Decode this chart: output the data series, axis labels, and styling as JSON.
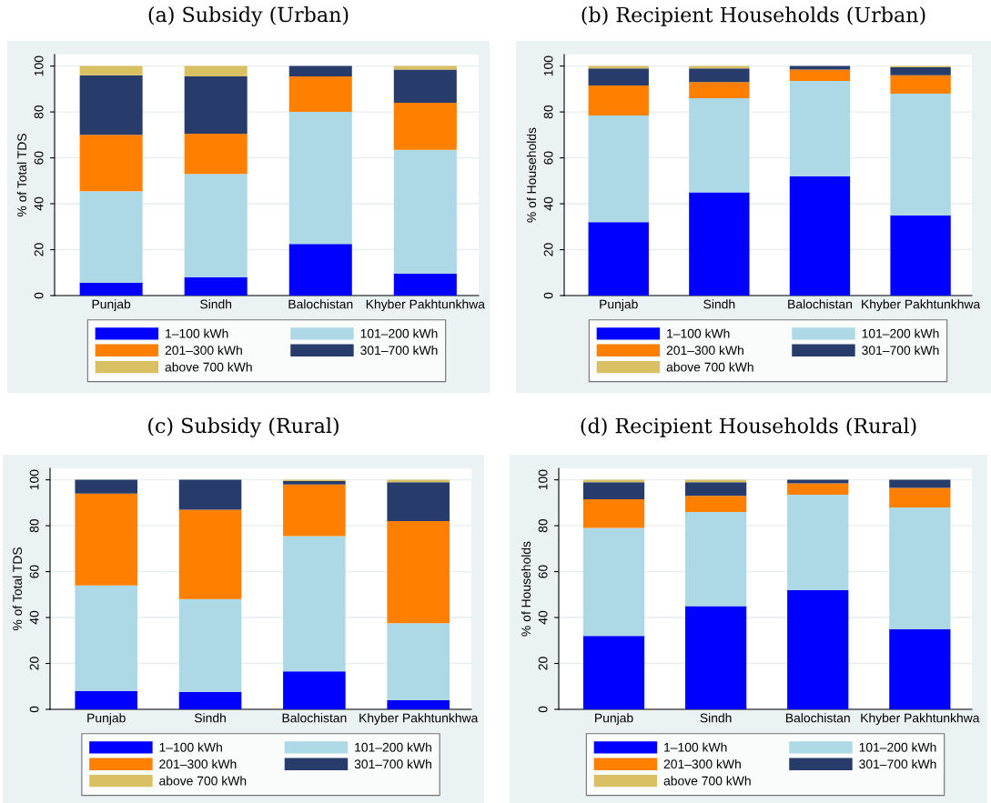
{
  "chart_data": [
    {
      "type": "bar",
      "title": "(a) Subsidy (Urban)",
      "ylabel": "% of Total TDS",
      "categories": [
        "Punjab",
        "Sindh",
        "Balochistan",
        "Khyber Pakhtunkhwa"
      ],
      "stacked": true,
      "ylim": [
        0,
        105
      ],
      "yticks": [
        0,
        20,
        40,
        60,
        80,
        100
      ],
      "grid": "y",
      "legend": "bottom",
      "series": [
        {
          "name": "1–100 kWh",
          "color": "#0000ff",
          "values": [
            5.5,
            8,
            22.5,
            9.5
          ]
        },
        {
          "name": "101–200 kWh",
          "color": "#add8e6",
          "values": [
            40,
            45,
            57.5,
            54
          ]
        },
        {
          "name": "201–300 kWh",
          "color": "#ff7f00",
          "values": [
            24.5,
            17.5,
            15.5,
            20.5
          ]
        },
        {
          "name": "301–700 kWh",
          "color": "#283c6b",
          "values": [
            26,
            25,
            4.5,
            14.5
          ]
        },
        {
          "name": "above 700 kWh",
          "color": "#d9c062",
          "values": [
            4,
            4.5,
            0,
            1.5
          ]
        }
      ]
    },
    {
      "type": "bar",
      "title": "(b) Recipient Households (Urban)",
      "ylabel": "% of Households",
      "categories": [
        "Punjab",
        "Sindh",
        "Balochistan",
        "Khyber Pakhtunkhwa"
      ],
      "stacked": true,
      "ylim": [
        0,
        105
      ],
      "yticks": [
        0,
        20,
        40,
        60,
        80,
        100
      ],
      "grid": "y",
      "legend": "bottom",
      "series": [
        {
          "name": "1–100 kWh",
          "color": "#0000ff",
          "values": [
            32,
            45,
            52,
            35
          ]
        },
        {
          "name": "101–200 kWh",
          "color": "#add8e6",
          "values": [
            46.5,
            41,
            41.5,
            53
          ]
        },
        {
          "name": "201–300 kWh",
          "color": "#ff7f00",
          "values": [
            13,
            7,
            5,
            8
          ]
        },
        {
          "name": "301–700 kWh",
          "color": "#283c6b",
          "values": [
            7.5,
            6,
            1.5,
            3.5
          ]
        },
        {
          "name": "above 700 kWh",
          "color": "#d9c062",
          "values": [
            1,
            1,
            0,
            0.5
          ]
        }
      ]
    },
    {
      "type": "bar",
      "title": "(c) Subsidy (Rural)",
      "ylabel": "% of Total TDS",
      "categories": [
        "Punjab",
        "Sindh",
        "Balochistan",
        "Khyber Pakhtunkhwa"
      ],
      "stacked": true,
      "ylim": [
        0,
        105
      ],
      "yticks": [
        0,
        20,
        40,
        60,
        80,
        100
      ],
      "grid": "y",
      "legend": "bottom",
      "series": [
        {
          "name": "1–100 kWh",
          "color": "#0000ff",
          "values": [
            8,
            7.5,
            16.5,
            4
          ]
        },
        {
          "name": "101–200 kWh",
          "color": "#add8e6",
          "values": [
            46,
            40.5,
            59,
            33.5
          ]
        },
        {
          "name": "201–300 kWh",
          "color": "#ff7f00",
          "values": [
            40,
            39,
            22.5,
            44.5
          ]
        },
        {
          "name": "301–700 kWh",
          "color": "#283c6b",
          "values": [
            6,
            13,
            1.5,
            17
          ]
        },
        {
          "name": "above 700 kWh",
          "color": "#d9c062",
          "values": [
            0,
            0,
            0.5,
            1
          ]
        }
      ]
    },
    {
      "type": "bar",
      "title": "(d) Recipient Households (Rural)",
      "ylabel": "% of Households",
      "categories": [
        "Punjab",
        "Sindh",
        "Balochistan",
        "Khyber Pakhtunkhwa"
      ],
      "stacked": true,
      "ylim": [
        0,
        105
      ],
      "yticks": [
        0,
        20,
        40,
        60,
        80,
        100
      ],
      "grid": "y",
      "legend": "bottom",
      "series": [
        {
          "name": "1–100 kWh",
          "color": "#0000ff",
          "values": [
            32,
            45,
            52,
            35
          ]
        },
        {
          "name": "101–200 kWh",
          "color": "#add8e6",
          "values": [
            47,
            41,
            41.5,
            53
          ]
        },
        {
          "name": "201–300 kWh",
          "color": "#ff7f00",
          "values": [
            12.5,
            7,
            5,
            8.5
          ]
        },
        {
          "name": "301–700 kWh",
          "color": "#283c6b",
          "values": [
            7.5,
            6,
            1.5,
            3.5
          ]
        },
        {
          "name": "above 700 kWh",
          "color": "#d9c062",
          "values": [
            1,
            1,
            0,
            0
          ]
        }
      ]
    }
  ]
}
